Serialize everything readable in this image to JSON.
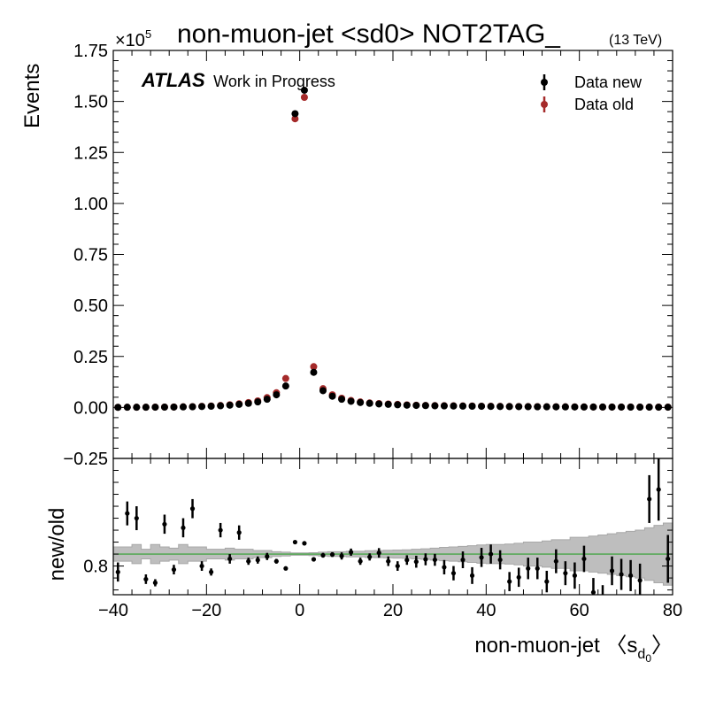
{
  "chart_data": {
    "type": "scatter",
    "title": "non-muon-jet <sd0> NOT2TAG_",
    "title_energy": "(13 TeV)",
    "atlas_label": "ATLAS",
    "atlas_sublabel": "Work in Progress",
    "xlabel_prefix": "non-muon-jet ",
    "xlabel_open": "〈",
    "xlabel_s": "s",
    "xlabel_sub_d": "d",
    "xlabel_sub_0": "0",
    "xlabel_close": "〉",
    "ylabel": "Events",
    "ratio_ylabel": "new/old",
    "y_multiplier": "×10",
    "y_multiplier_exp": "5",
    "xlim": [
      -40,
      80
    ],
    "ylim": [
      -0.25,
      1.75
    ],
    "ratio_ylim": [
      0.68,
      1.25
    ],
    "x_ticks": [
      "−40",
      "−20",
      "0",
      "20",
      "40",
      "60",
      "80"
    ],
    "x_tick_values": [
      -40,
      -20,
      0,
      20,
      40,
      60,
      80
    ],
    "y_ticks": [
      "−0.25",
      "0.00",
      "0.25",
      "0.50",
      "0.75",
      "1.00",
      "1.25",
      "1.50",
      "1.75"
    ],
    "y_tick_values": [
      -0.25,
      0.0,
      0.25,
      0.5,
      0.75,
      1.0,
      1.25,
      1.5,
      1.75
    ],
    "ratio_ticks": [
      "0.8"
    ],
    "ratio_tick_values": [
      0.8
    ],
    "legend_position": "top-right",
    "colors": {
      "new": "#000000",
      "old": "#a52a2a",
      "band": "#bebebe",
      "line": "#2ca02c"
    },
    "legend": [
      {
        "label": "Data new",
        "color": "#000000"
      },
      {
        "label": "Data old",
        "color": "#a52a2a"
      }
    ],
    "x": [
      -39,
      -37,
      -35,
      -33,
      -31,
      -29,
      -27,
      -25,
      -23,
      -21,
      -19,
      -17,
      -15,
      -13,
      -11,
      -9,
      -7,
      -5,
      -3,
      -1,
      1,
      3,
      5,
      7,
      9,
      11,
      13,
      15,
      17,
      19,
      21,
      23,
      25,
      27,
      29,
      31,
      33,
      35,
      37,
      39,
      41,
      43,
      45,
      47,
      49,
      51,
      53,
      55,
      57,
      59,
      61,
      63,
      65,
      67,
      69,
      71,
      73,
      75,
      77,
      79
    ],
    "series": [
      {
        "name": "Data new",
        "values": [
          0.0006,
          0.0009,
          0.0009,
          0.0009,
          0.0012,
          0.0015,
          0.0018,
          0.0025,
          0.0032,
          0.0045,
          0.006,
          0.008,
          0.011,
          0.015,
          0.02,
          0.027,
          0.04,
          0.062,
          0.105,
          1.44,
          1.555,
          0.172,
          0.082,
          0.055,
          0.04,
          0.03,
          0.024,
          0.02,
          0.017,
          0.015,
          0.013,
          0.011,
          0.01,
          0.009,
          0.008,
          0.0075,
          0.007,
          0.0065,
          0.006,
          0.0055,
          0.005,
          0.0046,
          0.0042,
          0.0039,
          0.0036,
          0.0033,
          0.003,
          0.0028,
          0.0026,
          0.0024,
          0.0022,
          0.002,
          0.0019,
          0.0018,
          0.0017,
          0.0016,
          0.0015,
          0.0014,
          0.0013,
          0.0012
        ]
      },
      {
        "name": "Data old",
        "values": [
          0.0008,
          0.001,
          0.001,
          0.0011,
          0.0015,
          0.0018,
          0.0022,
          0.003,
          0.0038,
          0.0055,
          0.0072,
          0.0095,
          0.013,
          0.018,
          0.024,
          0.032,
          0.048,
          0.072,
          0.142,
          1.415,
          1.52,
          0.2,
          0.092,
          0.062,
          0.045,
          0.034,
          0.027,
          0.022,
          0.019,
          0.017,
          0.015,
          0.0125,
          0.011,
          0.01,
          0.009,
          0.0085,
          0.008,
          0.0075,
          0.007,
          0.0062,
          0.0058,
          0.0053,
          0.0048,
          0.0045,
          0.0042,
          0.0038,
          0.0035,
          0.0032,
          0.003,
          0.0028,
          0.0025,
          0.0023,
          0.0022,
          0.0021,
          0.002,
          0.0019,
          0.0018,
          0.0017,
          0.0016,
          0.0015
        ]
      }
    ],
    "ratio": {
      "values": [
        0.775,
        1.02,
        1.0,
        0.745,
        0.73,
        0.975,
        0.785,
        0.96,
        1.04,
        0.8,
        0.775,
        0.95,
        0.83,
        0.94,
        0.82,
        0.825,
        0.84,
        0.82,
        0.79,
        0.9,
        0.895,
        0.828,
        0.845,
        0.848,
        0.842,
        0.858,
        0.82,
        0.838,
        0.855,
        0.82,
        0.8,
        0.825,
        0.818,
        0.828,
        0.826,
        0.795,
        0.77,
        0.826,
        0.76,
        0.836,
        0.85,
        0.826,
        0.735,
        0.753,
        0.79,
        0.79,
        0.735,
        0.82,
        0.77,
        0.76,
        0.83,
        0.69,
        0.66,
        0.78,
        0.765,
        0.76,
        0.74,
        1.08,
        1.12,
        0.83
      ],
      "errors": [
        0.04,
        0.05,
        0.05,
        0.02,
        0.015,
        0.04,
        0.02,
        0.04,
        0.04,
        0.02,
        0.015,
        0.03,
        0.02,
        0.03,
        0.015,
        0.015,
        0.015,
        0.01,
        0.005,
        0.005,
        0.005,
        0.005,
        0.01,
        0.01,
        0.015,
        0.015,
        0.015,
        0.015,
        0.02,
        0.02,
        0.02,
        0.02,
        0.025,
        0.025,
        0.025,
        0.03,
        0.03,
        0.035,
        0.035,
        0.04,
        0.04,
        0.04,
        0.04,
        0.04,
        0.045,
        0.045,
        0.045,
        0.05,
        0.05,
        0.055,
        0.055,
        0.06,
        0.06,
        0.06,
        0.065,
        0.065,
        0.07,
        0.1,
        0.13,
        0.1
      ],
      "band_upper": [
        0.88,
        0.88,
        0.89,
        0.87,
        0.89,
        0.88,
        0.875,
        0.89,
        0.88,
        0.88,
        0.87,
        0.87,
        0.875,
        0.87,
        0.87,
        0.865,
        0.865,
        0.86,
        0.858,
        0.855,
        0.855,
        0.856,
        0.858,
        0.86,
        0.86,
        0.862,
        0.862,
        0.864,
        0.865,
        0.866,
        0.867,
        0.868,
        0.87,
        0.872,
        0.875,
        0.878,
        0.88,
        0.882,
        0.885,
        0.888,
        0.89,
        0.89,
        0.892,
        0.895,
        0.9,
        0.9,
        0.905,
        0.91,
        0.91,
        0.92,
        0.92,
        0.925,
        0.93,
        0.935,
        0.94,
        0.945,
        0.95,
        0.96,
        0.97,
        0.98
      ],
      "band_lower": [
        0.82,
        0.82,
        0.81,
        0.83,
        0.81,
        0.82,
        0.825,
        0.81,
        0.82,
        0.82,
        0.83,
        0.83,
        0.825,
        0.83,
        0.83,
        0.835,
        0.835,
        0.84,
        0.842,
        0.845,
        0.845,
        0.844,
        0.842,
        0.84,
        0.84,
        0.838,
        0.838,
        0.836,
        0.835,
        0.834,
        0.833,
        0.832,
        0.83,
        0.828,
        0.825,
        0.822,
        0.82,
        0.818,
        0.815,
        0.812,
        0.81,
        0.81,
        0.808,
        0.805,
        0.8,
        0.8,
        0.795,
        0.79,
        0.79,
        0.78,
        0.78,
        0.775,
        0.77,
        0.765,
        0.76,
        0.755,
        0.75,
        0.74,
        0.73,
        0.72
      ],
      "reference": 0.85
    }
  }
}
